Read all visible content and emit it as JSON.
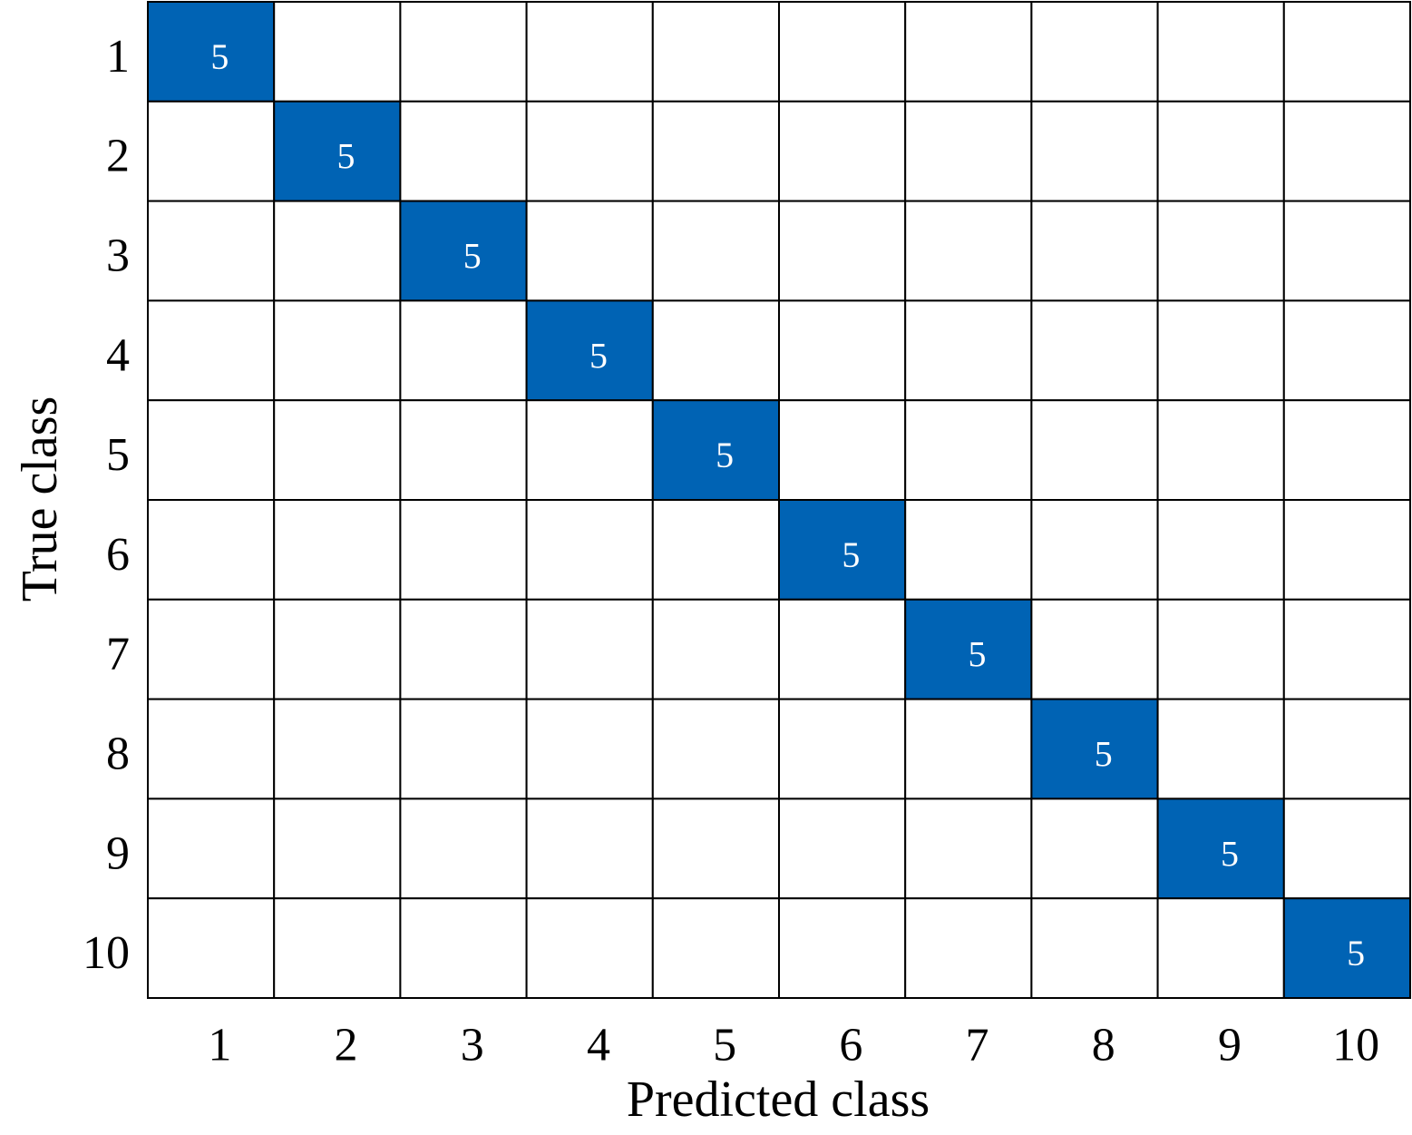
{
  "chart_data": {
    "type": "heatmap",
    "x_label": "Predicted class",
    "y_label": "True class",
    "x_categories": [
      "1",
      "2",
      "3",
      "4",
      "5",
      "6",
      "7",
      "8",
      "9",
      "10"
    ],
    "y_categories": [
      "1",
      "2",
      "3",
      "4",
      "5",
      "6",
      "7",
      "8",
      "9",
      "10"
    ],
    "color": "#0063b4",
    "values": [
      [
        5,
        null,
        null,
        null,
        null,
        null,
        null,
        null,
        null,
        null
      ],
      [
        null,
        5,
        null,
        null,
        null,
        null,
        null,
        null,
        null,
        null
      ],
      [
        null,
        null,
        5,
        null,
        null,
        null,
        null,
        null,
        null,
        null
      ],
      [
        null,
        null,
        null,
        5,
        null,
        null,
        null,
        null,
        null,
        null
      ],
      [
        null,
        null,
        null,
        null,
        5,
        null,
        null,
        null,
        null,
        null
      ],
      [
        null,
        null,
        null,
        null,
        null,
        5,
        null,
        null,
        null,
        null
      ],
      [
        null,
        null,
        null,
        null,
        null,
        null,
        5,
        null,
        null,
        null
      ],
      [
        null,
        null,
        null,
        null,
        null,
        null,
        null,
        5,
        null,
        null
      ],
      [
        null,
        null,
        null,
        null,
        null,
        null,
        null,
        null,
        5,
        null
      ],
      [
        null,
        null,
        null,
        null,
        null,
        null,
        null,
        null,
        null,
        5
      ]
    ]
  }
}
